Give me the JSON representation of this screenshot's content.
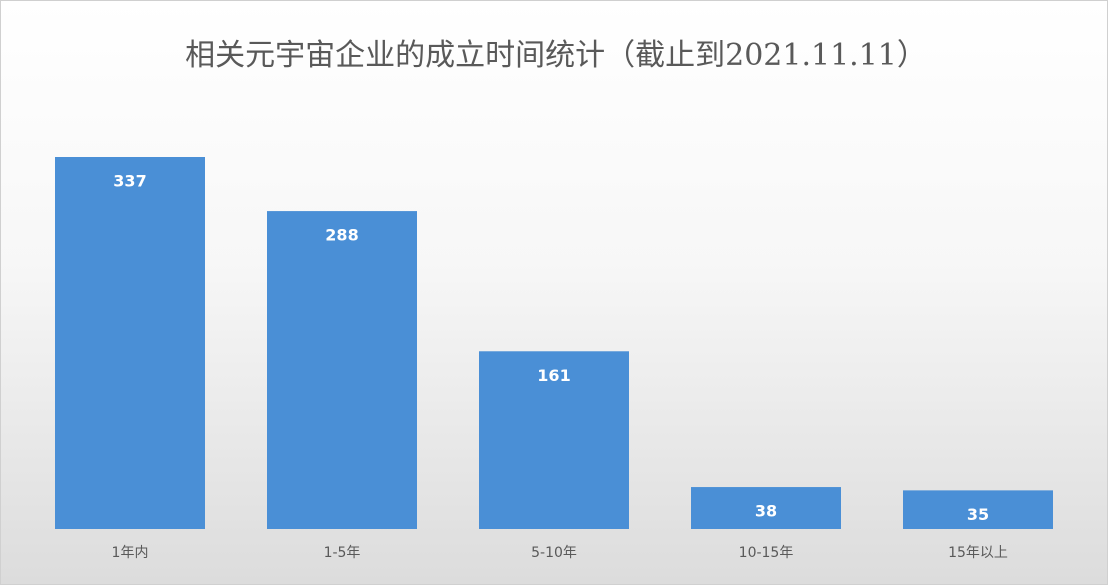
{
  "chart_data": {
    "type": "bar",
    "title": "相关元宇宙企业的成立时间统计（截止到2021.11.11）",
    "categories": [
      "1年内",
      "1-5年",
      "5-10年",
      "10-15年",
      "15年以上"
    ],
    "values": [
      337,
      288,
      161,
      38,
      35
    ],
    "color": "#4a8fd6"
  }
}
